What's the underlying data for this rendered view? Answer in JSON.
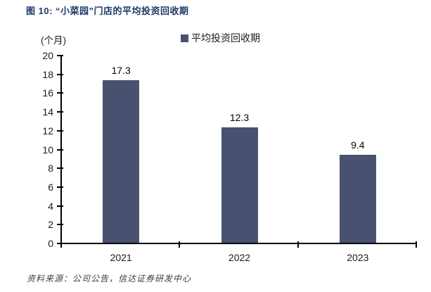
{
  "title": "图 10: “小菜园”门店的平均投资回收期",
  "legend": {
    "label": "平均投资回收期"
  },
  "unit_label": "(个月)",
  "footer": "资料来源：公司公告，信达证券研发中心",
  "colors": {
    "bar": "#485270",
    "title": "#1f3864",
    "axis": "#000000",
    "text": "#1a1a1a",
    "footer": "#3d3d3d"
  },
  "chart_data": {
    "type": "bar",
    "categories": [
      "2021",
      "2022",
      "2023"
    ],
    "values": [
      17.3,
      12.3,
      9.4
    ],
    "series_name": "平均投资回收期",
    "title": "“小菜园”门店的平均投资回收期",
    "ylabel": "(个月)",
    "ylim": [
      0,
      20
    ],
    "ytick_step": 2,
    "grid": false,
    "legend_position": "top",
    "value_labels": true
  }
}
